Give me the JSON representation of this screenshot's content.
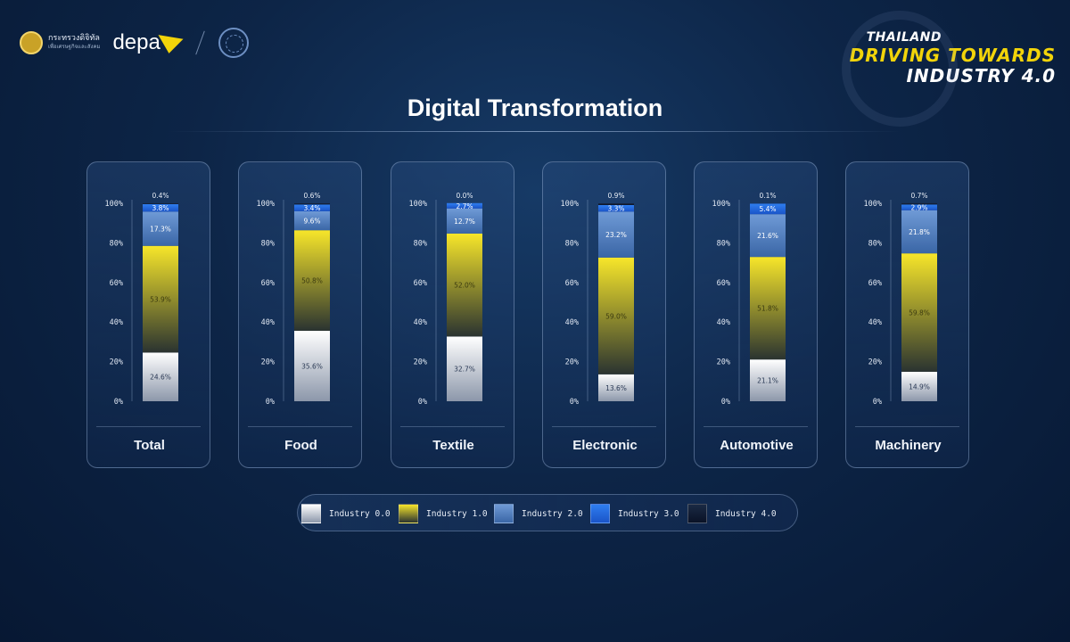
{
  "header": {
    "ministry_name": "กระทรวงดิจิทัล",
    "ministry_sub": "เพื่อเศรษฐกิจและสังคม",
    "agency_logo": "depa",
    "brand_line1": "THAILAND",
    "brand_line2": "DRIVING TOWARDS",
    "brand_line3": "INDUSTRY 4.0"
  },
  "icons": {
    "ministry_seal": "seal-icon",
    "depa_arrow": "arrow-icon",
    "partner": "partner-emblem-icon"
  },
  "colors": {
    "industry_0": [
      "#ffffff",
      "#8c97aa"
    ],
    "industry_1": [
      "#f7e62a",
      "#2a3330"
    ],
    "industry_2": [
      "#6f9ad6",
      "#3a66a6"
    ],
    "industry_3": [
      "#2f7ef0",
      "#1a54c8"
    ],
    "industry_4": [
      "#1a2a44",
      "#0a1226"
    ]
  },
  "chart_data": {
    "type": "bar",
    "stacked": true,
    "title": "Digital Transformation",
    "ylim": [
      0,
      100
    ],
    "yticks": [
      "0%",
      "20%",
      "40%",
      "60%",
      "80%",
      "100%"
    ],
    "categories": [
      "Total",
      "Food",
      "Textile",
      "Electronic",
      "Automotive",
      "Machinery"
    ],
    "series": [
      {
        "name": "Industry 0.0",
        "values": [
          24.6,
          35.6,
          32.7,
          13.6,
          21.1,
          14.9
        ],
        "labels": [
          "24.6%",
          "35.6%",
          "32.7%",
          "13.6%",
          "21.1%",
          "14.9%"
        ]
      },
      {
        "name": "Industry 1.0",
        "values": [
          53.9,
          50.8,
          52.0,
          59.0,
          51.8,
          59.8
        ],
        "labels": [
          "53.9%",
          "50.8%",
          "52.0%",
          "59.0%",
          "51.8%",
          "59.8%"
        ]
      },
      {
        "name": "Industry 2.0",
        "values": [
          17.3,
          9.6,
          12.7,
          23.2,
          21.6,
          21.8
        ],
        "labels": [
          "17.3%",
          "9.6%",
          "12.7%",
          "23.2%",
          "21.6%",
          "21.8%"
        ]
      },
      {
        "name": "Industry 3.0",
        "values": [
          3.8,
          3.4,
          2.7,
          3.3,
          5.4,
          2.9
        ],
        "labels": [
          "3.8%",
          "3.4%",
          "2.7%",
          "3.3%",
          "5.4%",
          "2.9%"
        ]
      },
      {
        "name": "Industry 4.0",
        "values": [
          0.4,
          0.6,
          0.0,
          0.9,
          0.1,
          0.7
        ],
        "labels": [
          "0.4%",
          "0.6%",
          "0.0%",
          "0.9%",
          "0.1%",
          "0.7%"
        ]
      }
    ],
    "legend": "bottom"
  }
}
